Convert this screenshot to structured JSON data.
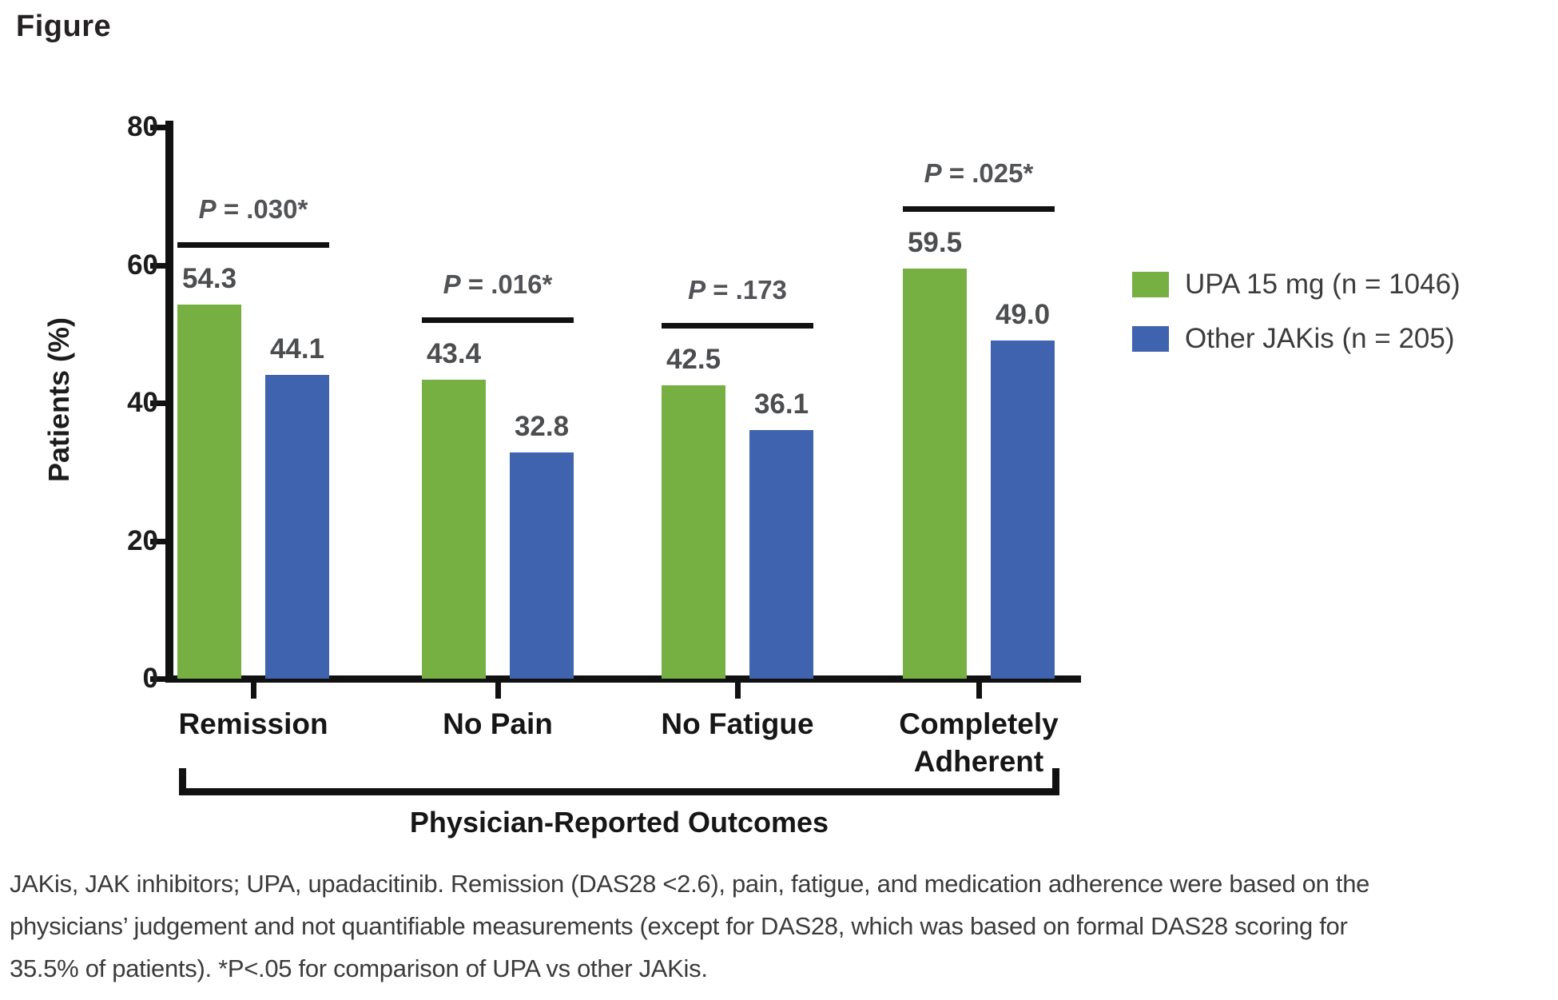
{
  "figure_label": "Figure",
  "chart_data": {
    "type": "bar",
    "title": "Figure",
    "ylabel": "Patients (%)",
    "xlabel": "",
    "ylim": [
      0,
      80
    ],
    "yticks": [
      0,
      20,
      40,
      60,
      80
    ],
    "grid": false,
    "legend_position": "right",
    "categories": [
      "Remission",
      "No Pain",
      "No Fatigue",
      "Completely Adherent"
    ],
    "series": [
      {
        "name": "UPA 15 mg (n = 1046)",
        "color": "#76b043",
        "values": [
          54.3,
          43.4,
          42.5,
          59.5
        ]
      },
      {
        "name": "Other JAKis (n = 205)",
        "color": "#3f63ae",
        "values": [
          44.1,
          32.8,
          36.1,
          49.0
        ]
      }
    ],
    "p_values": [
      "P = .030*",
      "P = .016*",
      "P = .173",
      "P = .025*"
    ],
    "x_group_label": "Physician-Reported Outcomes"
  },
  "footnote": {
    "lines": [
      "JAKis, JAK inhibitors; UPA, upadacitinib. Remission (DAS28 <2.6), pain, fatigue, and medication adherence were based on the",
      "physicians’ judgement and not quantifiable measurements (except for DAS28, which was based on formal DAS28 scoring for",
      "35.5% of patients). *P<.05 for comparison of UPA vs other JAKis."
    ]
  }
}
